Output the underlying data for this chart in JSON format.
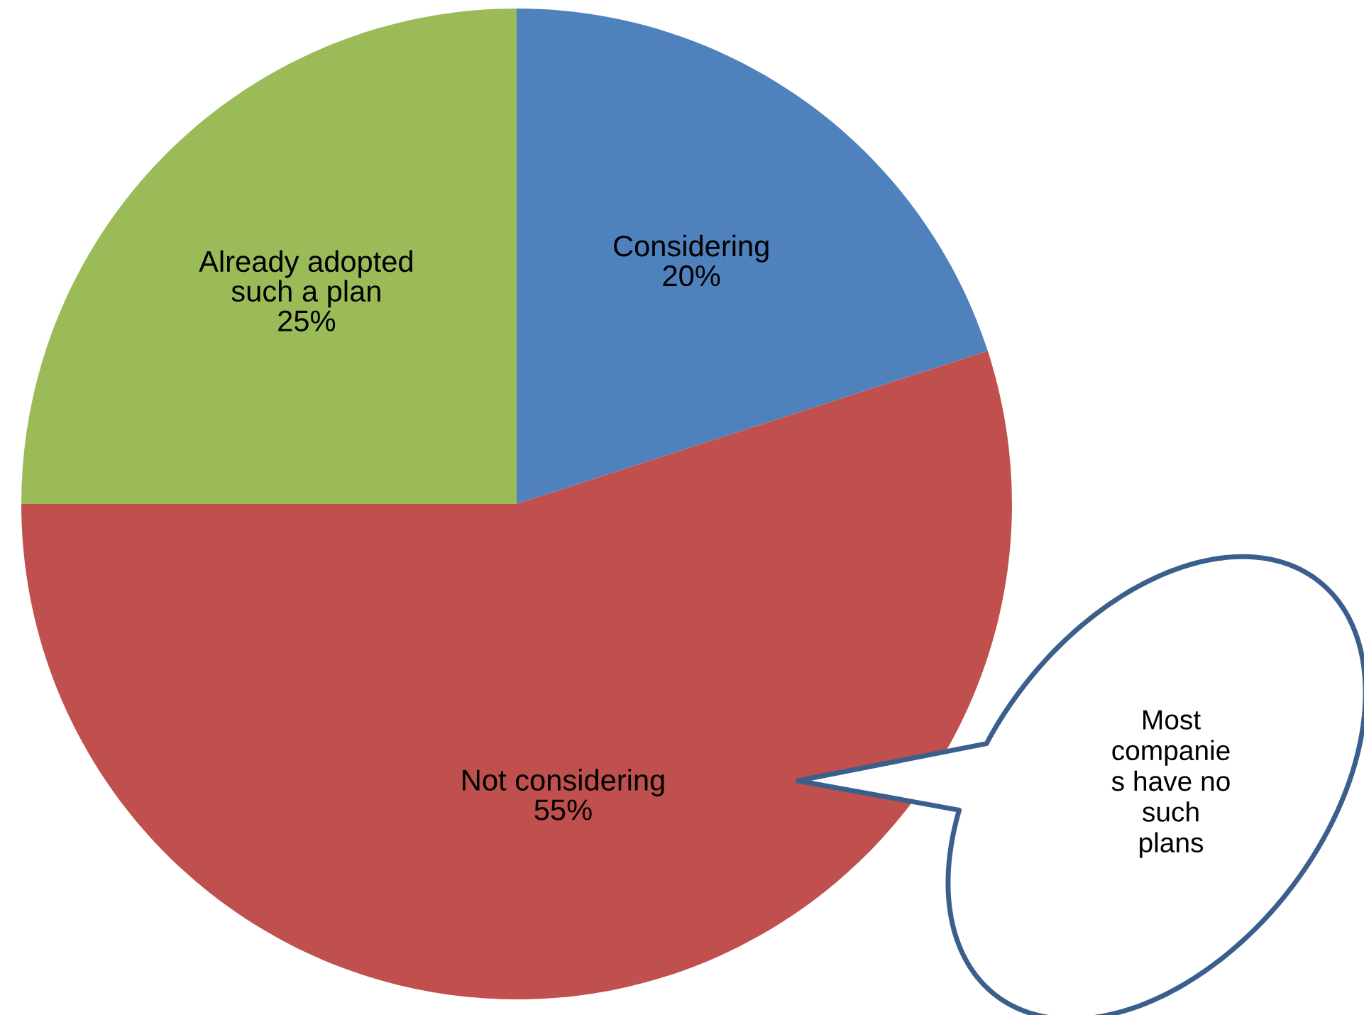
{
  "chart_data": {
    "type": "pie",
    "categories": [
      "Considering",
      "Not considering",
      "Already adopted\nsuch a plan"
    ],
    "values": [
      20,
      55,
      25
    ],
    "value_labels": [
      "20%",
      "55%",
      "25%"
    ],
    "colors": [
      "#4f81bd",
      "#c0504d",
      "#9bbb59"
    ],
    "legend": false,
    "annotations": [
      "Most\ncompanie\ns have no\nsuch\nplans"
    ]
  }
}
